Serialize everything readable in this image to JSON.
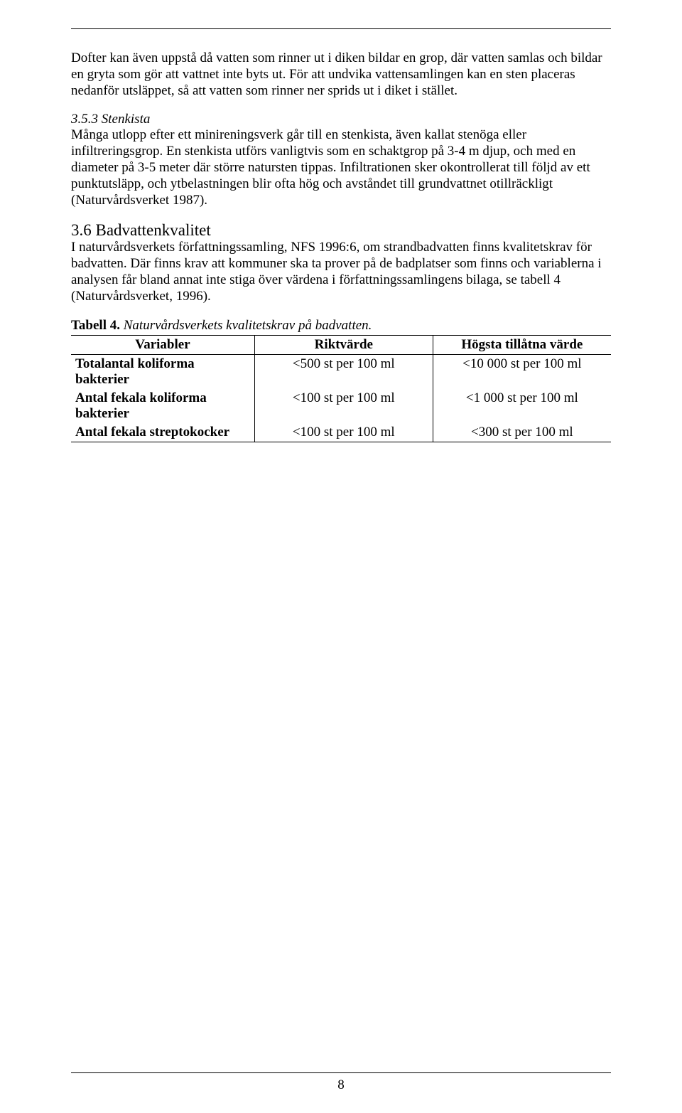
{
  "page": {
    "number": "8",
    "hr_color": "#000000",
    "background": "#ffffff",
    "text_color": "#000000",
    "font_family": "Times New Roman",
    "body_fontsize": 19,
    "heading_fontsize": 23
  },
  "paragraphs": {
    "p1": "Dofter kan även uppstå då vatten som rinner ut i diken bildar en grop, där vatten samlas och bildar en gryta som gör att vattnet inte byts ut. För att undvika vattensamlingen kan en sten placeras nedanför utsläppet, så att vatten som rinner ner sprids ut i diket i stället.",
    "h_stenkista": "3.5.3 Stenkista",
    "p2": "Många utlopp efter ett minireningsverk går till en stenkista, även kallat stenöga eller infiltreringsgrop. En stenkista utförs vanligtvis som en schaktgrop på 3-4 m djup, och med en diameter på 3-5 meter där större natursten tippas. Infiltrationen sker okontrollerat till följd av ett punktutsläpp, och ytbelastningen blir ofta hög och avståndet till grundvattnet otillräckligt (Naturvårdsverket 1987).",
    "h_bad": "3.6 Badvattenkvalitet",
    "p3": "I naturvårdsverkets författningssamling, NFS 1996:6, om strandbadvatten finns kvalitetskrav för badvatten. Där finns krav att kommuner ska ta prover på de badplatser som finns och variablerna i analysen får bland annat inte stiga över värdena i författningssamlingens bilaga, se tabell 4 (Naturvårdsverket, 1996)."
  },
  "table4": {
    "caption_bold": "Tabell 4.",
    "caption_ital": " Naturvårdsverkets kvalitetskrav på badvatten.",
    "columns": [
      "Variabler",
      "Riktvärde",
      "Högsta tillåtna värde"
    ],
    "rows": [
      {
        "variable": "Totalantal koliforma bakterier",
        "rikt": "<500 st per 100 ml",
        "max": "<10 000 st per 100 ml"
      },
      {
        "variable": "Antal fekala koliforma bakterier",
        "rikt": "<100 st per 100 ml",
        "max": "<1 000 st per 100 ml"
      },
      {
        "variable": "Antal fekala streptokocker",
        "rikt": "<100 st per 100 ml",
        "max": "<300 st per 100 ml"
      }
    ],
    "border_color": "#000000",
    "header_bold": true,
    "col_widths_pct": [
      34,
      33,
      33
    ]
  }
}
